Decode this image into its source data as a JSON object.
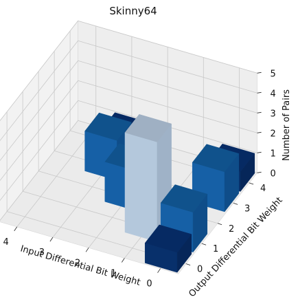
{
  "chart_data": {
    "type": "bar3d",
    "title": "Skinny64",
    "xlabel": "Input Differential Bit Weight",
    "ylabel": "Output Differential Bit Weight",
    "zlabel": "Number of Pairs",
    "x_ticks": [
      "4",
      "3",
      "2",
      "1",
      "0"
    ],
    "y_ticks": [
      "0",
      "1",
      "2",
      "3",
      "4"
    ],
    "z_ticks": [
      "0",
      "1",
      "2",
      "3",
      "4",
      "5"
    ],
    "zlim": [
      0,
      5
    ],
    "grid": true,
    "colormap": "Blues",
    "bars": [
      {
        "input_weight": 3,
        "output_weight": 4,
        "count": 1
      },
      {
        "input_weight": 3,
        "output_weight": 3,
        "count": 2
      },
      {
        "input_weight": 2,
        "output_weight": 2,
        "count": 2
      },
      {
        "input_weight": 1,
        "output_weight": 1,
        "count": 5
      },
      {
        "input_weight": 0,
        "output_weight": 4,
        "count": 1
      },
      {
        "input_weight": 0,
        "output_weight": 3,
        "count": 2
      },
      {
        "input_weight": 0,
        "output_weight": 1,
        "count": 2
      },
      {
        "input_weight": 0,
        "output_weight": 0,
        "count": 1
      }
    ]
  }
}
